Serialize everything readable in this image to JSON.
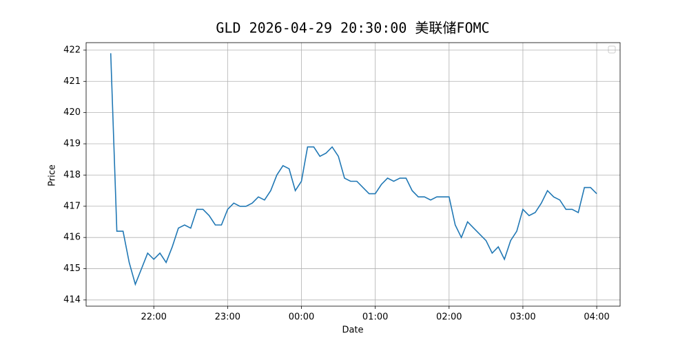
{
  "chart_data": {
    "type": "line",
    "title": "GLD 2026-04-29 20:30:00 美联储FOMC",
    "x_label": "Date",
    "y_label": "Price",
    "x": [
      "21:25",
      "21:30",
      "21:35",
      "21:40",
      "21:45",
      "21:50",
      "21:55",
      "22:00",
      "22:05",
      "22:10",
      "22:15",
      "22:20",
      "22:25",
      "22:30",
      "22:35",
      "22:40",
      "22:45",
      "22:50",
      "22:55",
      "23:00",
      "23:05",
      "23:10",
      "23:15",
      "23:20",
      "23:25",
      "23:30",
      "23:35",
      "23:40",
      "23:45",
      "23:50",
      "23:55",
      "00:00",
      "00:05",
      "00:10",
      "00:15",
      "00:20",
      "00:25",
      "00:30",
      "00:35",
      "00:40",
      "00:45",
      "00:50",
      "00:55",
      "01:00",
      "01:05",
      "01:10",
      "01:15",
      "01:20",
      "01:25",
      "01:30",
      "01:35",
      "01:40",
      "01:45",
      "01:50",
      "01:55",
      "02:00",
      "02:05",
      "02:10",
      "02:15",
      "02:20",
      "02:25",
      "02:30",
      "02:35",
      "02:40",
      "02:45",
      "02:50",
      "02:55",
      "03:00",
      "03:05",
      "03:10",
      "03:15",
      "03:20",
      "03:25",
      "03:30",
      "03:35",
      "03:40",
      "03:45",
      "03:50",
      "03:55",
      "04:00"
    ],
    "series": [
      {
        "color": "#1f77b4",
        "values": [
          421.9,
          416.2,
          416.2,
          415.2,
          414.5,
          415.0,
          415.5,
          415.3,
          415.5,
          415.2,
          415.7,
          416.3,
          416.4,
          416.3,
          416.9,
          416.9,
          416.7,
          416.4,
          416.4,
          416.9,
          417.1,
          417.0,
          417.0,
          417.1,
          417.3,
          417.2,
          417.5,
          418.0,
          418.3,
          418.2,
          417.5,
          417.8,
          418.9,
          418.9,
          418.6,
          418.7,
          418.9,
          418.6,
          417.9,
          417.8,
          417.8,
          417.6,
          417.4,
          417.4,
          417.7,
          417.9,
          417.8,
          417.9,
          417.9,
          417.5,
          417.3,
          417.3,
          417.2,
          417.3,
          417.3,
          417.3,
          416.4,
          416.0,
          416.5,
          416.3,
          416.1,
          415.9,
          415.5,
          415.7,
          415.3,
          415.9,
          416.2,
          416.9,
          416.7,
          416.8,
          417.1,
          417.5,
          417.3,
          417.2,
          416.9,
          416.9,
          416.8,
          417.6,
          417.6,
          417.4
        ]
      }
    ],
    "xlim": [
      "21:05",
      "04:19"
    ],
    "xticks": [
      "22:00",
      "23:00",
      "00:00",
      "01:00",
      "02:00",
      "03:00",
      "04:00"
    ],
    "ylim": [
      413.8,
      422.24
    ],
    "yticks": [
      414,
      415,
      416,
      417,
      418,
      419,
      420,
      421,
      422
    ],
    "grid": true
  }
}
